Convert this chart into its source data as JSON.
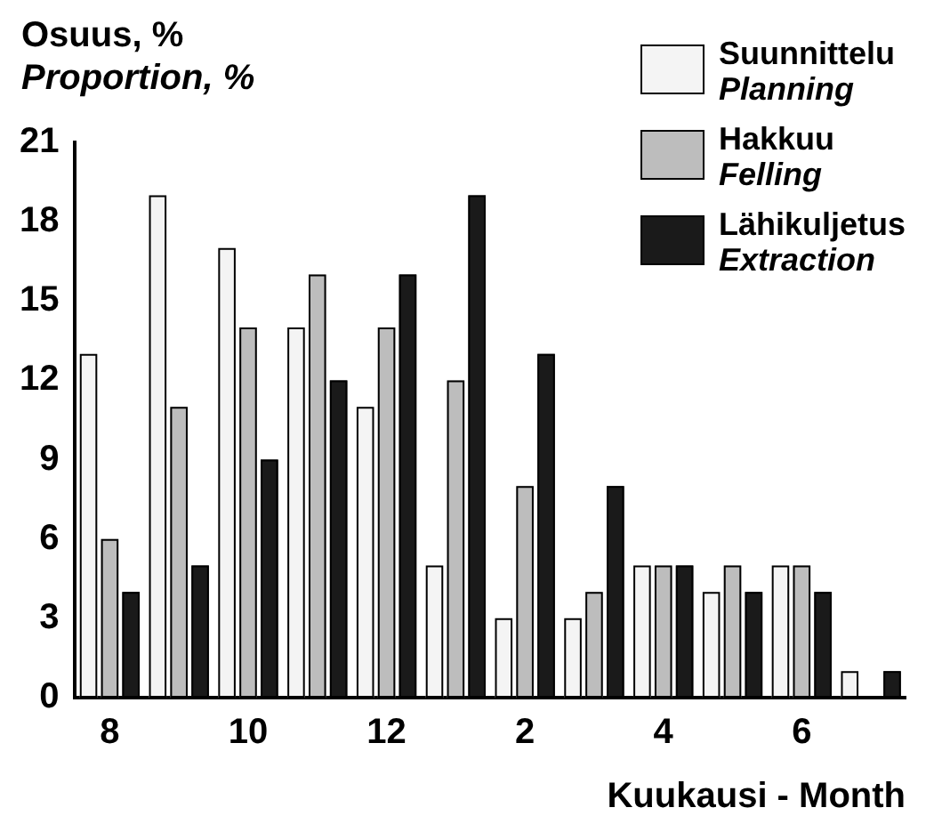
{
  "chart_data": {
    "type": "bar",
    "ylabel": "Osuus, %\nProportion, %",
    "xlabel": "Kuukausi - Month",
    "categories": [
      "8",
      null,
      "10",
      null,
      "12",
      null,
      "2",
      null,
      "4",
      null,
      "6",
      null
    ],
    "series": [
      {
        "name": "Suunnittelu\nPlanning",
        "color": "#f4f4f4",
        "values": [
          13,
          19,
          17,
          14,
          11,
          5,
          3,
          3,
          5,
          4,
          5,
          1
        ]
      },
      {
        "name": "Hakkuu\nFelling",
        "color": "#bdbdbd",
        "values": [
          6,
          11,
          14,
          16,
          14,
          12,
          8,
          4,
          5,
          5,
          5,
          0
        ]
      },
      {
        "name": "Lähikuljetus\nExtraction",
        "color": "#1a1a1a",
        "values": [
          4,
          5,
          9,
          12,
          16,
          19,
          13,
          8,
          5,
          4,
          4,
          1
        ]
      }
    ],
    "ylim": [
      0,
      21
    ],
    "yticks": [
      0,
      3,
      6,
      9,
      12,
      15,
      18,
      21
    ],
    "grid": false,
    "legend": "top right"
  }
}
